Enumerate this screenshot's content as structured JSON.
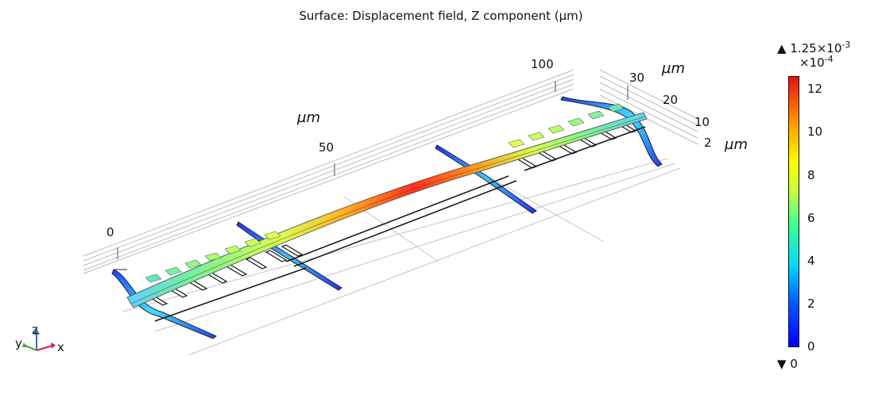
{
  "title": "Surface: Displacement field, Z component (µm)",
  "axes": {
    "x_ticks": [
      "0",
      "50",
      "100"
    ],
    "x_unit": "µm",
    "y_ticks": [
      "30",
      "20",
      "10",
      "2"
    ],
    "y_unit": "µm",
    "triad": {
      "x": "x",
      "y": "y",
      "z": "z"
    }
  },
  "colorbar": {
    "max_label": "1.25×10",
    "max_exp": "-3",
    "scale_label": "×10",
    "scale_exp": "-4",
    "min_label": "0",
    "ticks": [
      "12",
      "10",
      "8",
      "6",
      "4",
      "2",
      "0"
    ],
    "max_icon": "triangle-up-icon",
    "min_icon": "triangle-down-icon",
    "colormap": [
      "#0000ff",
      "#0080ff",
      "#00e0ff",
      "#40ff80",
      "#c0ff40",
      "#ffff00",
      "#ffa000",
      "#ff3000",
      "#e00000"
    ]
  }
}
